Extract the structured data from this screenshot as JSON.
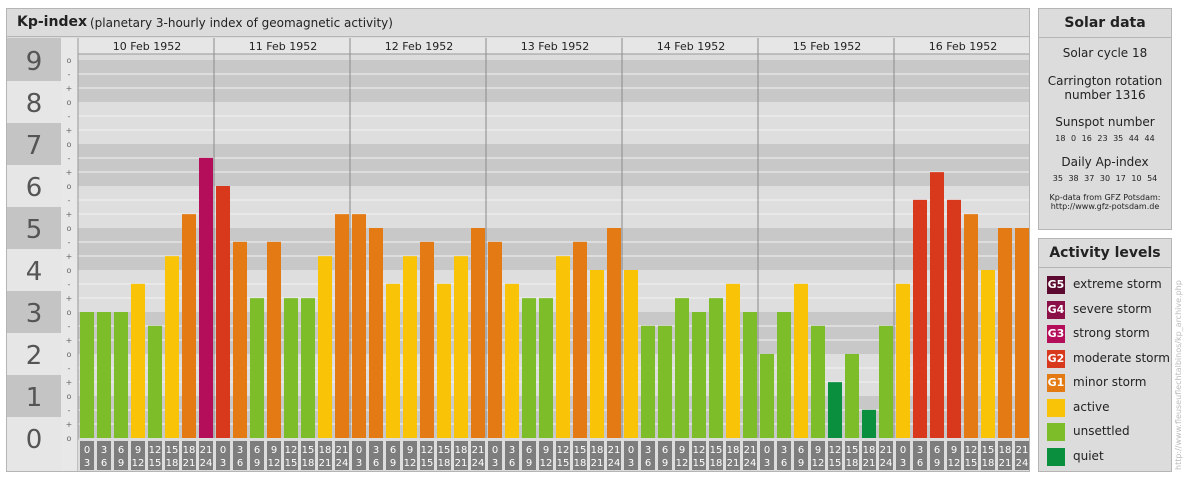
{
  "header": {
    "title": "Kp-index",
    "subtitle": "(planetary 3-hourly index of geomagnetic activity)"
  },
  "chart_data": {
    "type": "bar",
    "y_ticks": [
      "0",
      "1",
      "2",
      "3",
      "4",
      "5",
      "6",
      "7",
      "8",
      "9"
    ],
    "ylim": [
      0,
      9
    ],
    "sub_ticks": [
      "o",
      "+",
      "-"
    ],
    "days": [
      "10 Feb 1952",
      "11 Feb 1952",
      "12 Feb 1952",
      "13 Feb 1952",
      "14 Feb 1952",
      "15 Feb 1952",
      "16 Feb 1952"
    ],
    "interval_top": [
      "0",
      "3",
      "6",
      "9",
      "12",
      "15",
      "18",
      "21"
    ],
    "interval_bottom": [
      "3",
      "6",
      "9",
      "12",
      "15",
      "18",
      "21",
      "24"
    ],
    "values": [
      [
        3.0,
        3.0,
        3.0,
        3.67,
        2.67,
        4.33,
        5.33,
        6.67
      ],
      [
        6.0,
        4.67,
        3.33,
        4.67,
        3.33,
        3.33,
        4.33,
        5.33
      ],
      [
        5.33,
        5.0,
        3.67,
        4.33,
        4.67,
        3.67,
        4.33,
        5.0
      ],
      [
        4.67,
        3.67,
        3.33,
        3.33,
        4.33,
        4.67,
        4.0,
        5.0
      ],
      [
        4.0,
        2.67,
        2.67,
        3.33,
        3.0,
        3.33,
        3.67,
        3.0
      ],
      [
        2.0,
        3.0,
        3.67,
        2.67,
        1.33,
        2.0,
        0.67,
        2.67
      ],
      [
        3.67,
        5.67,
        6.33,
        5.67,
        5.33,
        4.0,
        5.0,
        5.0
      ]
    ],
    "colors": {
      "quiet": "#0a8f3f",
      "unsettled": "#7dbd2a",
      "active": "#f9c308",
      "minor": "#e47a14",
      "moderate": "#d8381c",
      "strong": "#b40d59",
      "severe": "#8c1048",
      "extreme": "#5c0a30"
    }
  },
  "solar": {
    "header": "Solar data",
    "cycle": "Solar cycle 18",
    "carrington_line1": "Carrington rotation",
    "carrington_line2": "number 1316",
    "sunspot_label": "Sunspot number",
    "sunspot_values": "18 0 16 23 35 44 44",
    "ap_label": "Daily Ap-index",
    "ap_values": "35 38 37 30 17 10 54",
    "source_line1": "Kp-data from GFZ Potsdam:",
    "source_line2": "http://www.gfz-potsdam.de"
  },
  "activity": {
    "header": "Activity levels",
    "levels": [
      {
        "badge": "G5",
        "label": "extreme storm",
        "color": "#5c0a30"
      },
      {
        "badge": "G4",
        "label": "severe storm",
        "color": "#8c1048"
      },
      {
        "badge": "G3",
        "label": "strong storm",
        "color": "#b40d59"
      },
      {
        "badge": "G2",
        "label": "moderate storm",
        "color": "#d8381c"
      },
      {
        "badge": "G1",
        "label": "minor storm",
        "color": "#e47a14"
      },
      {
        "badge": "",
        "label": "active",
        "color": "#f9c308"
      },
      {
        "badge": "",
        "label": "unsettled",
        "color": "#7dbd2a"
      },
      {
        "badge": "",
        "label": "quiet",
        "color": "#0a8f3f"
      }
    ]
  },
  "watermark": "http://www.fleuseuflechtalbinos/kp_archive.php"
}
